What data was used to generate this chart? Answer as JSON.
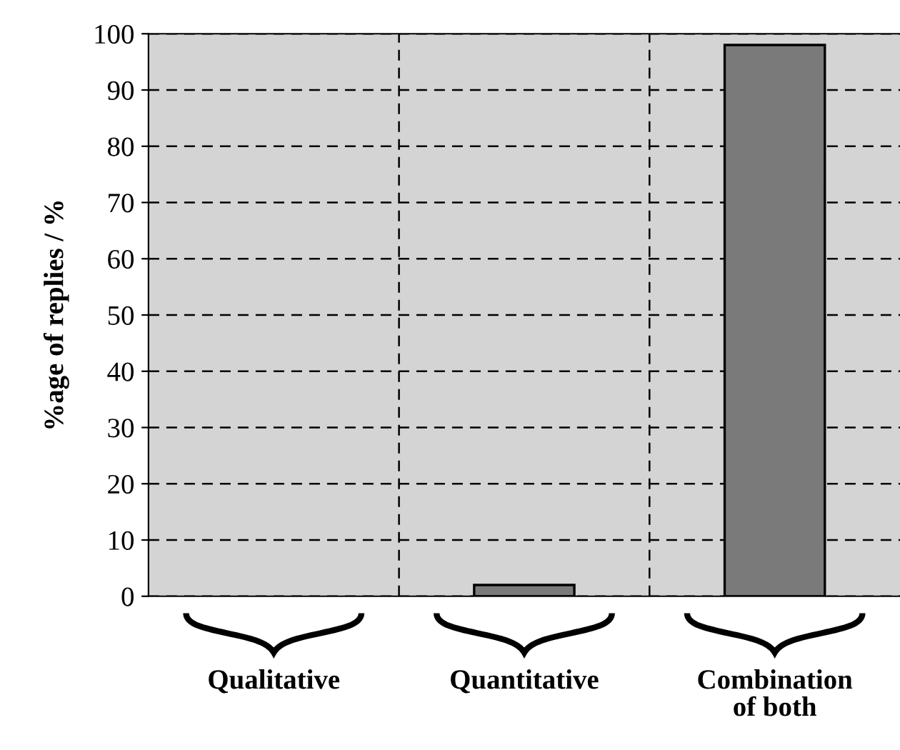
{
  "chart_data": {
    "type": "bar",
    "ylabel": "%age of replies / %",
    "categories": [
      "Qualitative",
      "Quantitative",
      "Combination\nof both"
    ],
    "values": [
      0,
      2,
      98
    ],
    "color": "#7a7a7a",
    "ylim": [
      0,
      100
    ],
    "yticks": [
      0,
      10,
      20,
      30,
      40,
      50,
      60,
      70,
      80,
      90,
      100
    ],
    "grid": true
  }
}
